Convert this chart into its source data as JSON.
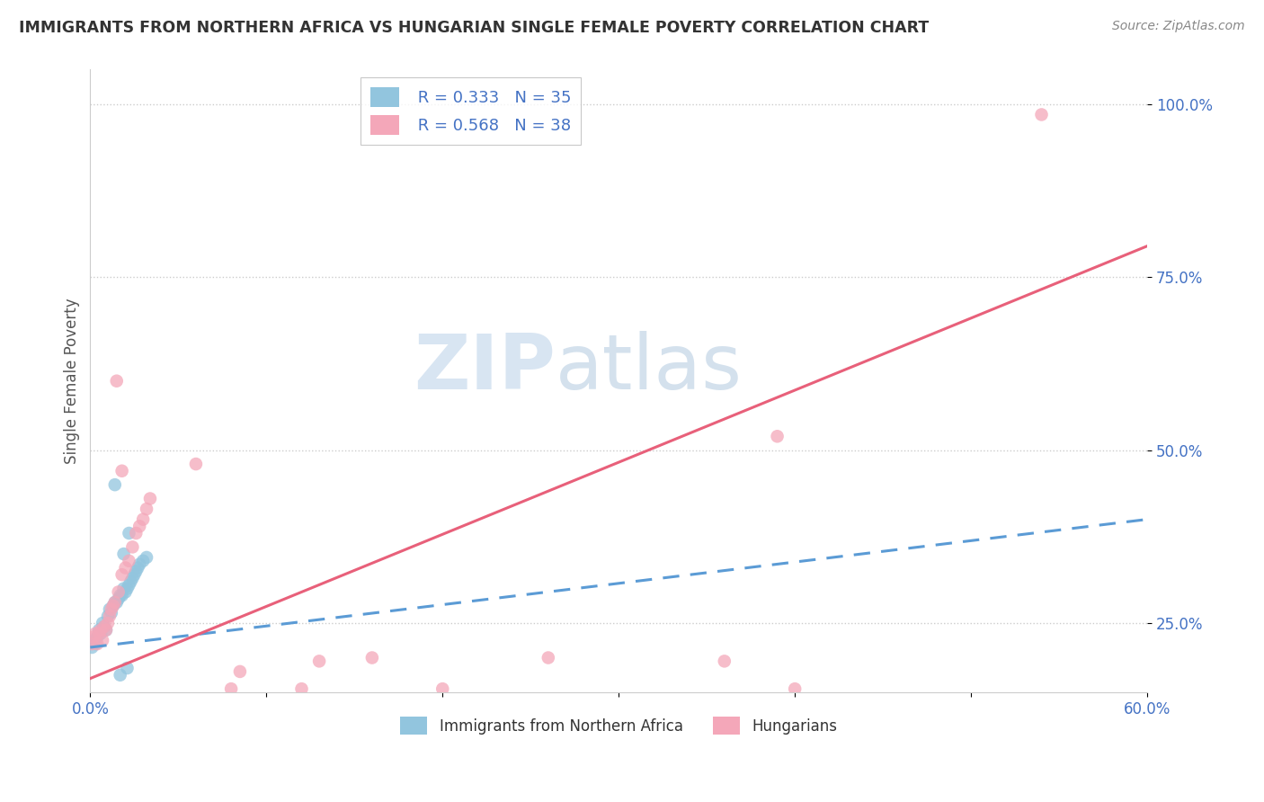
{
  "title": "IMMIGRANTS FROM NORTHERN AFRICA VS HUNGARIAN SINGLE FEMALE POVERTY CORRELATION CHART",
  "source": "Source: ZipAtlas.com",
  "ylabel": "Single Female Poverty",
  "xlim": [
    0.0,
    0.6
  ],
  "ylim": [
    0.15,
    1.05
  ],
  "yticks": [
    0.25,
    0.5,
    0.75,
    1.0
  ],
  "ytick_labels": [
    "25.0%",
    "50.0%",
    "75.0%",
    "100.0%"
  ],
  "xticks": [
    0.0,
    0.1,
    0.2,
    0.3,
    0.4,
    0.5,
    0.6
  ],
  "xtick_labels": [
    "0.0%",
    "",
    "",
    "",
    "",
    "",
    "60.0%"
  ],
  "blue_R": "R = 0.333",
  "blue_N": "N = 35",
  "pink_R": "R = 0.568",
  "pink_N": "N = 38",
  "blue_color": "#92C5DE",
  "pink_color": "#F4A7B9",
  "blue_line_color": "#5B9BD5",
  "pink_line_color": "#E8607A",
  "legend_label_blue": "Immigrants from Northern Africa",
  "legend_label_pink": "Hungarians",
  "blue_points": [
    [
      0.001,
      0.215
    ],
    [
      0.002,
      0.225
    ],
    [
      0.003,
      0.22
    ],
    [
      0.004,
      0.23
    ],
    [
      0.005,
      0.24
    ],
    [
      0.006,
      0.235
    ],
    [
      0.007,
      0.25
    ],
    [
      0.008,
      0.245
    ],
    [
      0.009,
      0.24
    ],
    [
      0.01,
      0.26
    ],
    [
      0.011,
      0.27
    ],
    [
      0.012,
      0.265
    ],
    [
      0.013,
      0.275
    ],
    [
      0.014,
      0.28
    ],
    [
      0.015,
      0.28
    ],
    [
      0.016,
      0.285
    ],
    [
      0.017,
      0.29
    ],
    [
      0.018,
      0.29
    ],
    [
      0.019,
      0.3
    ],
    [
      0.02,
      0.295
    ],
    [
      0.021,
      0.3
    ],
    [
      0.022,
      0.305
    ],
    [
      0.023,
      0.31
    ],
    [
      0.024,
      0.315
    ],
    [
      0.025,
      0.32
    ],
    [
      0.026,
      0.325
    ],
    [
      0.027,
      0.33
    ],
    [
      0.028,
      0.335
    ],
    [
      0.03,
      0.34
    ],
    [
      0.032,
      0.345
    ],
    [
      0.014,
      0.45
    ],
    [
      0.022,
      0.38
    ],
    [
      0.019,
      0.35
    ],
    [
      0.017,
      0.175
    ],
    [
      0.021,
      0.185
    ]
  ],
  "pink_points": [
    [
      0.001,
      0.22
    ],
    [
      0.002,
      0.23
    ],
    [
      0.003,
      0.235
    ],
    [
      0.004,
      0.22
    ],
    [
      0.005,
      0.235
    ],
    [
      0.006,
      0.24
    ],
    [
      0.007,
      0.225
    ],
    [
      0.008,
      0.245
    ],
    [
      0.009,
      0.24
    ],
    [
      0.01,
      0.25
    ],
    [
      0.011,
      0.26
    ],
    [
      0.012,
      0.27
    ],
    [
      0.013,
      0.275
    ],
    [
      0.014,
      0.28
    ],
    [
      0.016,
      0.295
    ],
    [
      0.018,
      0.32
    ],
    [
      0.02,
      0.33
    ],
    [
      0.022,
      0.34
    ],
    [
      0.024,
      0.36
    ],
    [
      0.026,
      0.38
    ],
    [
      0.028,
      0.39
    ],
    [
      0.03,
      0.4
    ],
    [
      0.032,
      0.415
    ],
    [
      0.034,
      0.43
    ],
    [
      0.015,
      0.6
    ],
    [
      0.018,
      0.47
    ],
    [
      0.06,
      0.48
    ],
    [
      0.085,
      0.18
    ],
    [
      0.13,
      0.195
    ],
    [
      0.16,
      0.2
    ],
    [
      0.26,
      0.2
    ],
    [
      0.36,
      0.195
    ],
    [
      0.39,
      0.52
    ],
    [
      0.54,
      0.985
    ],
    [
      0.4,
      0.155
    ],
    [
      0.2,
      0.155
    ],
    [
      0.12,
      0.155
    ],
    [
      0.08,
      0.155
    ]
  ],
  "blue_line": [
    [
      0.0,
      0.215
    ],
    [
      0.6,
      0.4
    ]
  ],
  "pink_line": [
    [
      0.0,
      0.17
    ],
    [
      0.6,
      0.795
    ]
  ]
}
